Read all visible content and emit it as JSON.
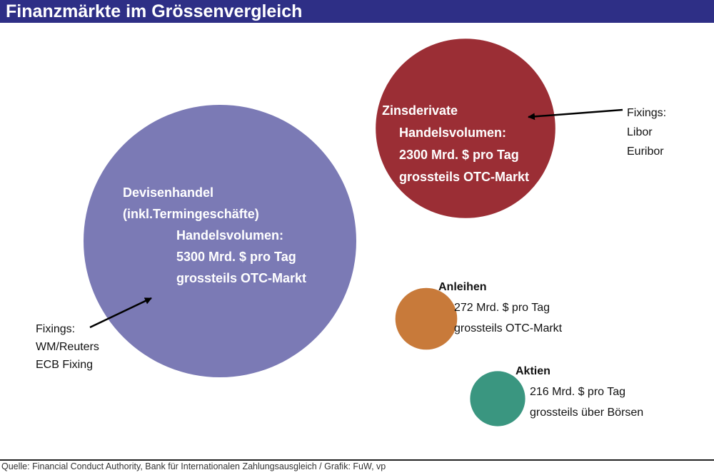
{
  "title": "Finanzmärkte im Grössenvergleich",
  "source": "Quelle: Financial Conduct Authority, Bank für Internationalen Zahlungsausgleich / Grafik: FuW, vp",
  "colors": {
    "title_bar": "#2e2f86",
    "devisen": "#7b7ab5",
    "zinsderivate": "#9b2e35",
    "anleihen": "#c87a3a",
    "aktien": "#3a9680"
  },
  "chart_data": {
    "type": "bubble",
    "unit": "Mrd. $ pro Tag",
    "bubbles": [
      {
        "key": "devisen",
        "name": "Devisenhandel",
        "value": 5300,
        "lines": [
          "Devisenhandel",
          "(inkl.Termingeschäfte)",
          "Handelsvolumen:",
          "5300 Mrd. $ pro Tag",
          "grossteils OTC-Markt"
        ],
        "annotation": [
          "Fixings:",
          "WM/Reuters",
          "ECB Fixing"
        ]
      },
      {
        "key": "zinsderivate",
        "name": "Zinsderivate",
        "value": 2300,
        "lines": [
          "Zinsderivate",
          "Handelsvolumen:",
          "2300 Mrd. $ pro Tag",
          "grossteils OTC-Markt"
        ],
        "annotation": [
          "Fixings:",
          "Libor",
          "Euribor"
        ]
      },
      {
        "key": "anleihen",
        "name": "Anleihen",
        "value": 272,
        "lines": [
          "Anleihen",
          "272 Mrd. $ pro Tag",
          "grossteils OTC-Markt"
        ]
      },
      {
        "key": "aktien",
        "name": "Aktien",
        "value": 216,
        "lines": [
          "Aktien",
          "216 Mrd. $ pro Tag",
          "grossteils über Börsen"
        ]
      }
    ]
  }
}
